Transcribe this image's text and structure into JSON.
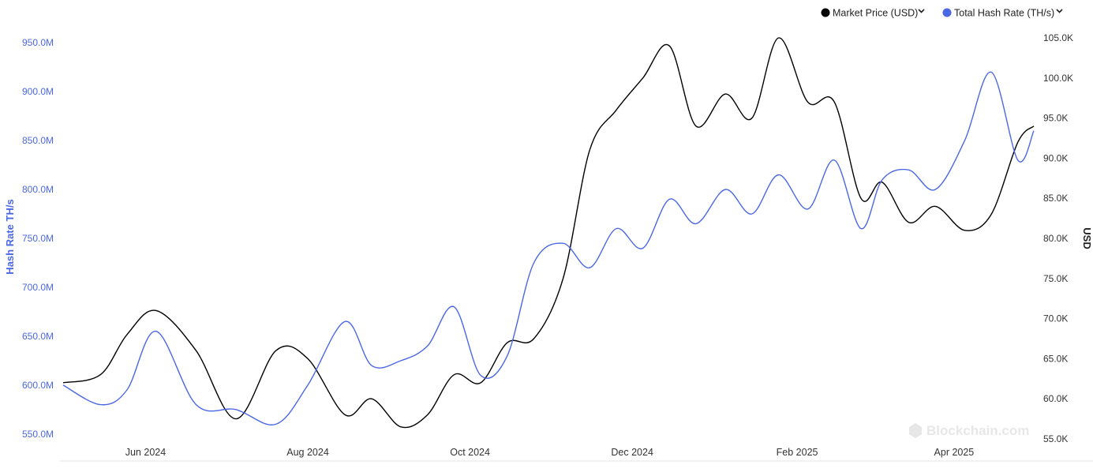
{
  "chart_data": {
    "type": "line",
    "title": "",
    "legend": {
      "placement": "top-right",
      "items": [
        {
          "label": "Market Price (USD)",
          "color": "#000000",
          "icon": "chevron-down-icon"
        },
        {
          "label": "Total Hash Rate (TH/s)",
          "color": "#4a67e6",
          "icon": "chevron-down-icon"
        }
      ]
    },
    "xlabel": "",
    "x_ticks": [
      "Jun 2024",
      "Aug 2024",
      "Oct 2024",
      "Dec 2024",
      "Feb 2025",
      "Apr 2025"
    ],
    "left_axis": {
      "label": "Hash Rate TH/s",
      "color": "#4a67e6",
      "range": [
        545,
        955
      ],
      "tick_values": [
        550,
        600,
        650,
        700,
        750,
        800,
        850,
        900,
        950
      ],
      "tick_labels": [
        "550.0M",
        "600.0M",
        "650.0M",
        "700.0M",
        "750.0M",
        "800.0M",
        "850.0M",
        "900.0M",
        "950.0M"
      ]
    },
    "right_axis": {
      "label": "USD",
      "color": "#333333",
      "range": [
        55000,
        105000
      ],
      "tick_values": [
        55000,
        60000,
        65000,
        70000,
        75000,
        80000,
        85000,
        90000,
        95000,
        100000,
        105000
      ],
      "tick_labels": [
        "55.0K",
        "60.0K",
        "65.0K",
        "70.0K",
        "75.0K",
        "80.0K",
        "85.0K",
        "90.0K",
        "95.0K",
        "100.0K",
        "105.0K"
      ]
    },
    "grid": false,
    "watermark": "Blockchain.com",
    "x_dates": [
      "2024-05-01",
      "2024-05-15",
      "2024-05-25",
      "2024-06-05",
      "2024-06-20",
      "2024-07-05",
      "2024-07-20",
      "2024-08-01",
      "2024-08-15",
      "2024-08-25",
      "2024-09-05",
      "2024-09-15",
      "2024-09-25",
      "2024-10-05",
      "2024-10-15",
      "2024-10-25",
      "2024-11-05",
      "2024-11-15",
      "2024-11-25",
      "2024-12-05",
      "2024-12-15",
      "2024-12-25",
      "2025-01-05",
      "2025-01-15",
      "2025-01-25",
      "2025-02-05",
      "2025-02-15",
      "2025-02-25",
      "2025-03-05",
      "2025-03-15",
      "2025-03-25",
      "2025-04-05",
      "2025-04-15",
      "2025-04-25",
      "2025-05-01"
    ],
    "series": [
      {
        "name": "Market Price (USD)",
        "axis": "right",
        "color": "#000000",
        "values": [
          62000,
          63000,
          68000,
          71000,
          66000,
          57500,
          66000,
          65000,
          58000,
          60000,
          56500,
          58000,
          63000,
          62000,
          67000,
          67500,
          75000,
          91000,
          96000,
          100000,
          104000,
          94000,
          98000,
          95000,
          105000,
          97000,
          97000,
          85000,
          87000,
          82000,
          84000,
          81000,
          83000,
          92000,
          94000
        ]
      },
      {
        "name": "Total Hash Rate (TH/s)",
        "axis": "left",
        "color": "#4a67e6",
        "values": [
          600,
          580,
          595,
          655,
          580,
          575,
          560,
          600,
          665,
          620,
          625,
          640,
          680,
          610,
          630,
          725,
          745,
          720,
          760,
          740,
          790,
          765,
          800,
          775,
          815,
          780,
          830,
          760,
          810,
          820,
          800,
          850,
          920,
          830,
          860
        ]
      }
    ]
  }
}
